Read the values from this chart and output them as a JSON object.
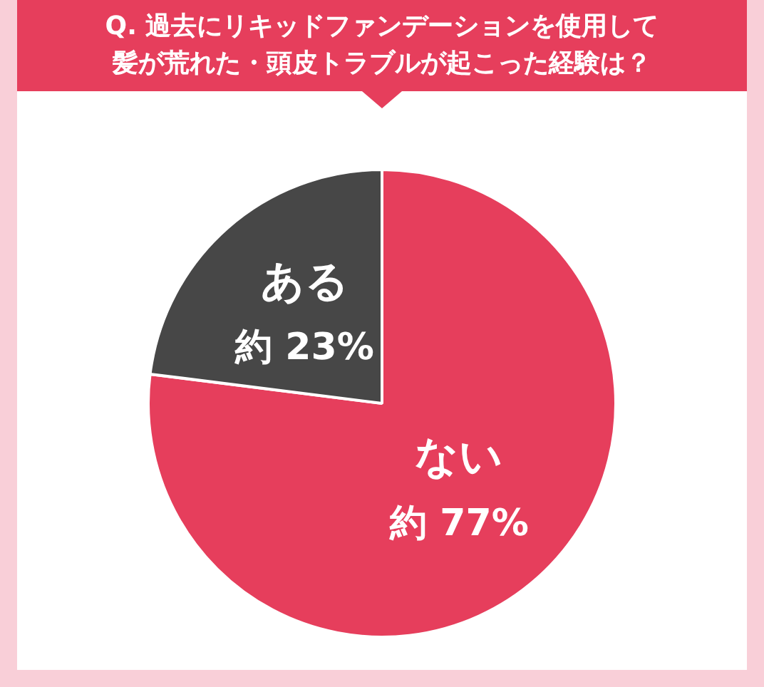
{
  "chart_data": {
    "type": "pie",
    "title": "Q. 過去にリキッドファンデーションを使用して髪が荒れた・頭皮トラブルが起こった経験は？",
    "categories": [
      "ない",
      "ある"
    ],
    "values": [
      77,
      23
    ],
    "colors": [
      "#e63e5c",
      "#474747"
    ],
    "value_labels": [
      "約 77%",
      "約 23%"
    ],
    "legend": false
  }
}
